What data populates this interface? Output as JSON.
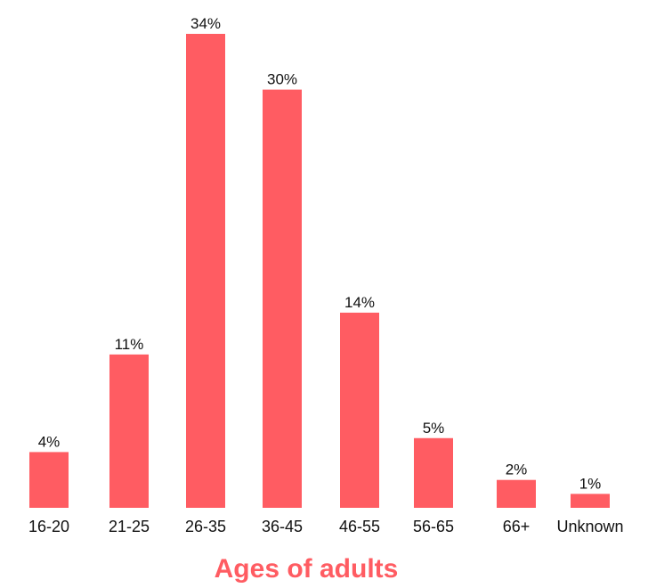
{
  "chart_data": {
    "type": "bar",
    "title": "",
    "xlabel": "Ages of adults",
    "ylabel": "",
    "categories": [
      "16-20",
      "21-25",
      "26-35",
      "36-45",
      "46-55",
      "56-65",
      "66+",
      "Unknown"
    ],
    "values": [
      4,
      11,
      34,
      30,
      14,
      5,
      2,
      1
    ],
    "data_labels": [
      "4%",
      "11%",
      "34%",
      "30%",
      "14%",
      "5%",
      "2%",
      "1%"
    ],
    "ylim": [
      0,
      34
    ],
    "grid": false,
    "legend": "none",
    "colors": {
      "bar": "#ff5c62",
      "xlabel": "#ff5c62",
      "text": "#111111"
    }
  }
}
